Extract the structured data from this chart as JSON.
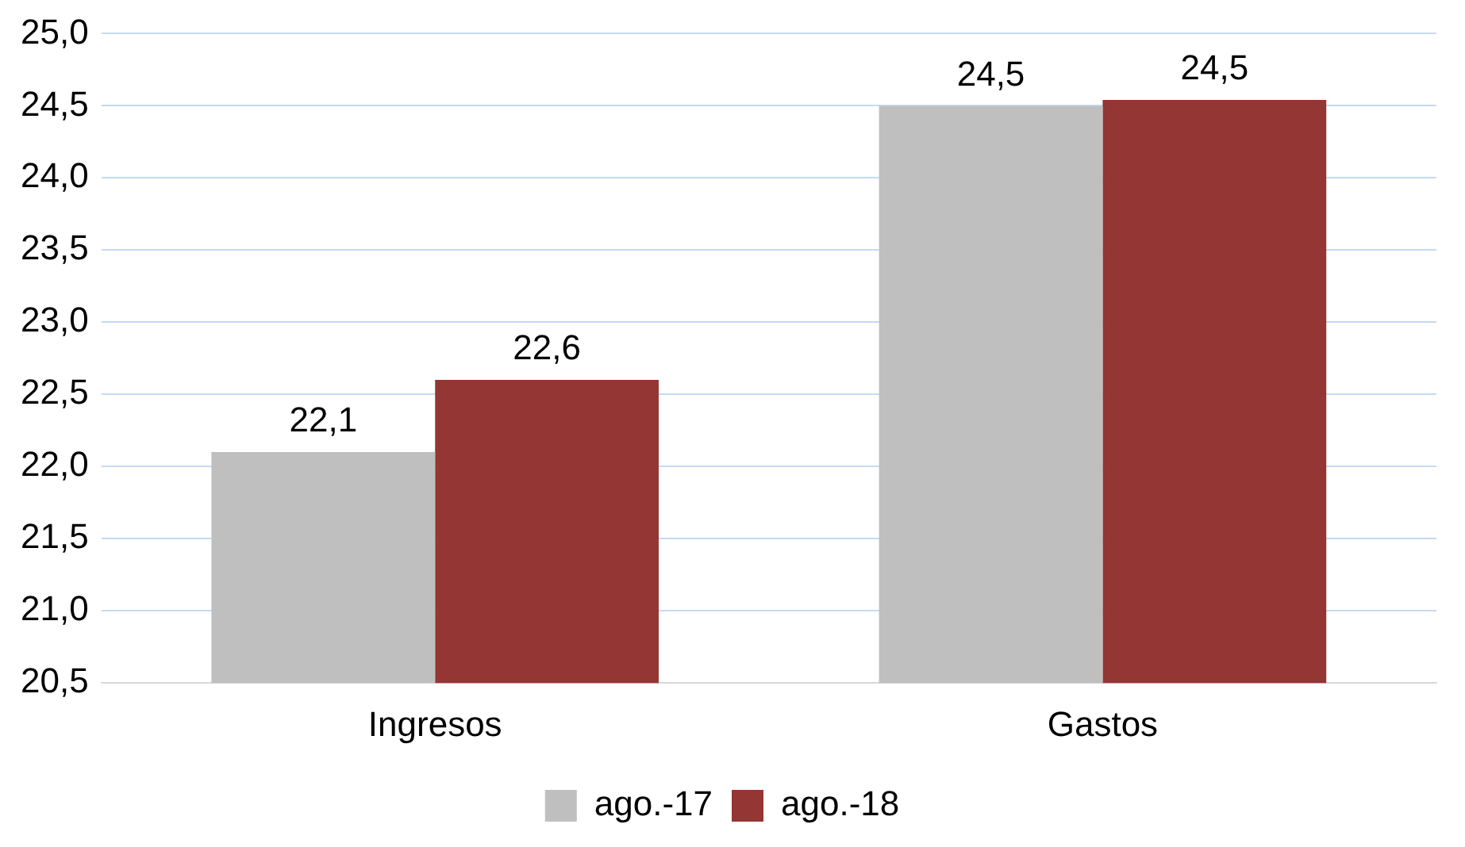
{
  "chart_data": {
    "type": "bar",
    "categories": [
      "Ingresos",
      "Gastos"
    ],
    "series": [
      {
        "name": "ago.-17",
        "color": "#bfbfbf",
        "values": [
          22.1,
          24.5
        ],
        "value_labels": [
          "22,1",
          "24,5"
        ]
      },
      {
        "name": "ago.-18",
        "color": "#943634",
        "values": [
          22.6,
          24.54
        ],
        "value_labels": [
          "22,6",
          "24,5"
        ]
      }
    ],
    "ylim": [
      20.5,
      25.0
    ],
    "yticks": [
      {
        "value": 20.5,
        "label": "20,5"
      },
      {
        "value": 21.0,
        "label": "21,0"
      },
      {
        "value": 21.5,
        "label": "21,5"
      },
      {
        "value": 22.0,
        "label": "22,0"
      },
      {
        "value": 22.5,
        "label": "22,5"
      },
      {
        "value": 23.0,
        "label": "23,0"
      },
      {
        "value": 23.5,
        "label": "23,5"
      },
      {
        "value": 24.0,
        "label": "24,0"
      },
      {
        "value": 24.5,
        "label": "24,5"
      },
      {
        "value": 25.0,
        "label": "25,0"
      }
    ],
    "grid": "y",
    "legend": "bottom"
  }
}
